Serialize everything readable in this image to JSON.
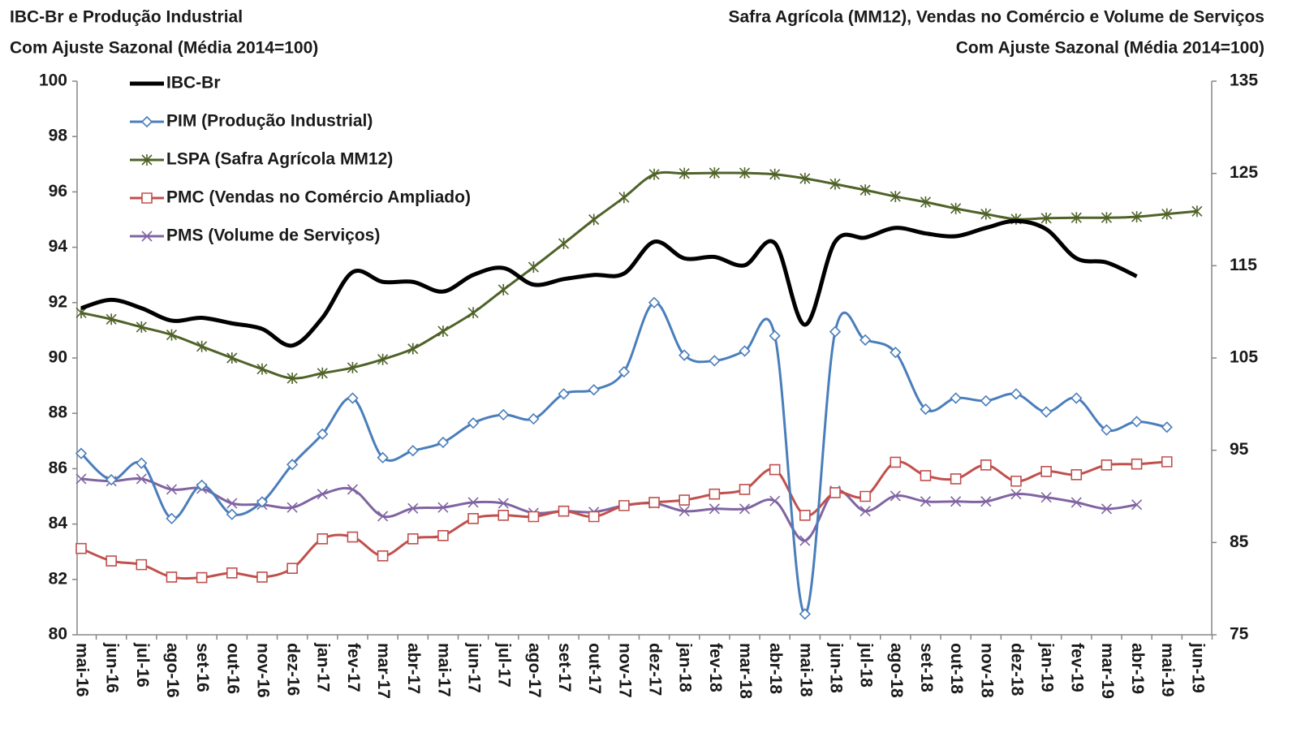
{
  "chart_data": {
    "type": "line",
    "ylabel": [
      "IBC-Br e Produção Industrial",
      "Com Ajuste Sazonal (Média 2014=100)"
    ],
    "y2label": [
      "Safra Agrícola (MM12), Vendas no Comércio e Volume de Serviços",
      "Com Ajuste Sazonal (Média 2014=100)"
    ],
    "categories": [
      "mai-16",
      "jun-16",
      "jul-16",
      "ago-16",
      "set-16",
      "out-16",
      "nov-16",
      "dez-16",
      "jan-17",
      "fev-17",
      "mar-17",
      "abr-17",
      "mai-17",
      "jun-17",
      "jul-17",
      "ago-17",
      "set-17",
      "out-17",
      "nov-17",
      "dez-17",
      "jan-18",
      "fev-18",
      "mar-18",
      "abr-18",
      "mai-18",
      "jun-18",
      "jul-18",
      "ago-18",
      "set-18",
      "out-18",
      "nov-18",
      "dez-18",
      "jan-19",
      "fev-19",
      "mar-19",
      "abr-19",
      "mai-19",
      "jun-19"
    ],
    "ylim": [
      80,
      100
    ],
    "yticks": [
      80,
      82,
      84,
      86,
      88,
      90,
      92,
      94,
      96,
      98,
      100
    ],
    "y2lim": [
      75,
      135
    ],
    "y2ticks": [
      75,
      85,
      95,
      105,
      115,
      125,
      135
    ],
    "grid": false,
    "legend": "upper left",
    "series": [
      {
        "name": "IBC-Br",
        "color": "#000000",
        "marker": "none",
        "values": [
          91.8,
          92.1,
          91.8,
          91.35,
          91.45,
          91.25,
          91.05,
          90.45,
          91.45,
          93.1,
          92.75,
          92.75,
          92.4,
          93.0,
          93.25,
          92.65,
          92.85,
          93.0,
          93.05,
          94.2,
          93.6,
          93.65,
          93.35,
          94.15,
          91.2,
          94.2,
          94.35,
          94.7,
          94.5,
          94.4,
          94.7,
          94.95,
          94.65,
          93.6,
          93.45,
          92.95,
          null,
          null
        ]
      },
      {
        "name": "PIM (Produção Industrial)",
        "color": "#4a7ebb",
        "marker": "diamond",
        "values": [
          86.55,
          85.6,
          86.2,
          84.2,
          85.4,
          84.35,
          84.8,
          86.15,
          87.25,
          88.55,
          86.4,
          86.65,
          86.95,
          87.65,
          87.95,
          87.8,
          88.7,
          88.85,
          89.5,
          92.0,
          90.1,
          89.9,
          90.25,
          90.8,
          80.75,
          90.95,
          90.65,
          90.2,
          88.15,
          88.55,
          88.45,
          88.7,
          88.05,
          88.55,
          87.4,
          87.7,
          87.5,
          null
        ]
      },
      {
        "name": "LSPA (Safra Agrícola MM12)",
        "color": "#4f6228",
        "marker": "star",
        "axis": "y2",
        "values": [
          109.9,
          109.2,
          108.35,
          107.5,
          106.25,
          105.0,
          103.8,
          102.8,
          103.35,
          103.95,
          104.85,
          106.0,
          107.9,
          109.9,
          112.4,
          114.85,
          117.4,
          120.0,
          122.4,
          124.9,
          125.0,
          125.05,
          125.05,
          124.9,
          124.45,
          123.85,
          123.2,
          122.5,
          121.9,
          121.2,
          120.6,
          120.05,
          120.15,
          120.2,
          120.2,
          120.3,
          120.6,
          120.9
        ]
      },
      {
        "name": "PMC (Vendas no Comércio Ampliado)",
        "color": "#c0504d",
        "marker": "square",
        "axis": "y2",
        "values": [
          84.35,
          83.0,
          82.6,
          81.25,
          81.2,
          81.7,
          81.25,
          82.2,
          85.4,
          85.6,
          83.55,
          85.4,
          85.75,
          87.6,
          87.95,
          87.8,
          88.4,
          87.8,
          89.0,
          89.35,
          89.6,
          90.25,
          90.75,
          92.9,
          87.95,
          90.4,
          90.0,
          93.7,
          92.25,
          91.9,
          93.4,
          91.65,
          92.7,
          92.35,
          93.4,
          93.5,
          93.75,
          null
        ]
      },
      {
        "name": "PMS (Volume de Serviços)",
        "color": "#8064a2",
        "marker": "x",
        "axis": "y2",
        "values": [
          91.9,
          91.65,
          91.9,
          90.75,
          90.85,
          89.25,
          89.1,
          88.8,
          90.25,
          90.75,
          87.85,
          88.7,
          88.8,
          89.35,
          89.25,
          88.2,
          88.4,
          88.3,
          89.0,
          89.25,
          88.4,
          88.65,
          88.65,
          89.5,
          85.2,
          90.6,
          88.4,
          90.05,
          89.45,
          89.45,
          89.45,
          90.25,
          89.9,
          89.35,
          88.65,
          89.1,
          null,
          null
        ]
      }
    ]
  }
}
